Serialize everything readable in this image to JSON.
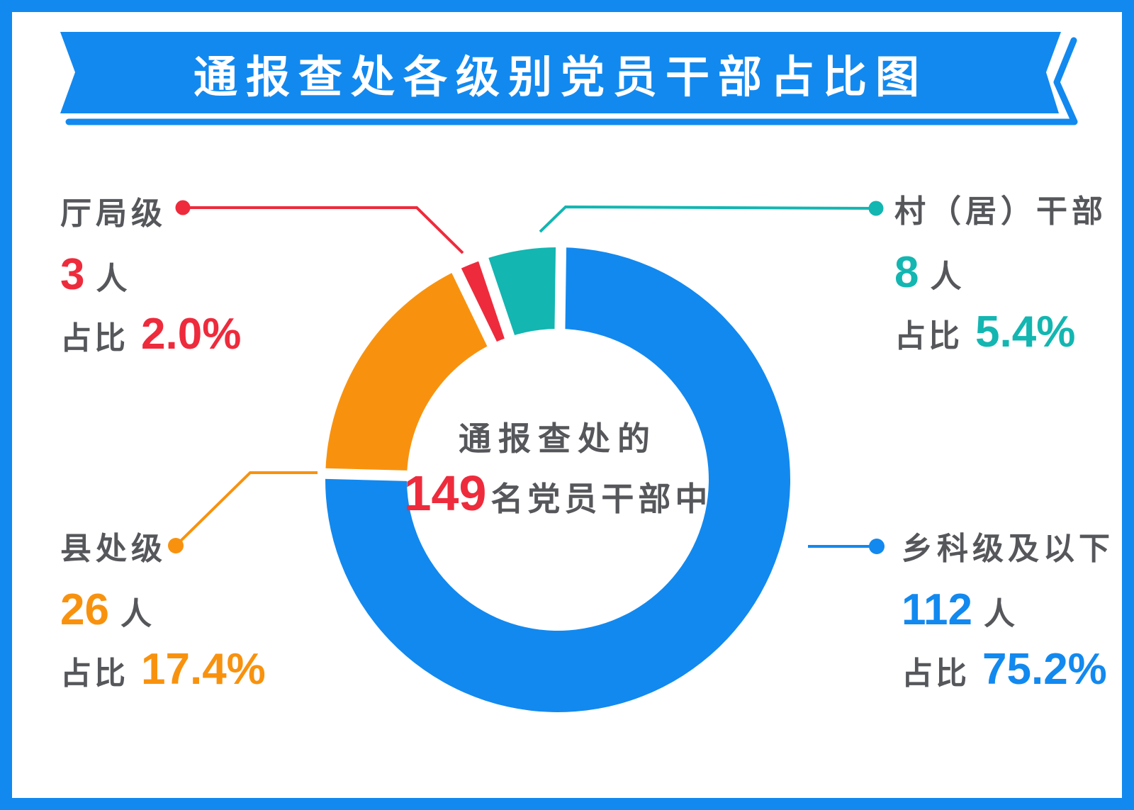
{
  "title": "通报查处各级别党员干部占比图",
  "theme": {
    "banner_blue": "#1289EF",
    "text_gray": "#56575B",
    "accent_red": "#EE2B3C",
    "background": "#FFFFFF"
  },
  "center": {
    "line1": "通报查处的",
    "total": "149",
    "suffix": "名党员干部中"
  },
  "chart_data": {
    "type": "pie",
    "donut": true,
    "title": "通报查处各级别党员干部占比图",
    "total_label": "149名党员干部",
    "total": 149,
    "start_angle_deg": 0.8,
    "legend_position": "callouts-around-donut",
    "segments": [
      {
        "label": "乡科级及以下",
        "count": "112",
        "unit": "人",
        "pct_prefix": "占比",
        "pct": 75.2,
        "pct_display": "75.2%",
        "color": "#1289EF"
      },
      {
        "label": "县处级",
        "count": "26",
        "unit": "人",
        "pct_prefix": "占比",
        "pct": 17.4,
        "pct_display": "17.4%",
        "color": "#F8920E"
      },
      {
        "label": "厅局级",
        "count": "3",
        "unit": "人",
        "pct_prefix": "占比",
        "pct": 2.0,
        "pct_display": "2.0%",
        "color": "#EE2B3C"
      },
      {
        "label": "村（居）干部",
        "count": "8",
        "unit": "人",
        "pct_prefix": "占比",
        "pct": 5.4,
        "pct_display": "5.4%",
        "color": "#13B6B1"
      }
    ]
  }
}
